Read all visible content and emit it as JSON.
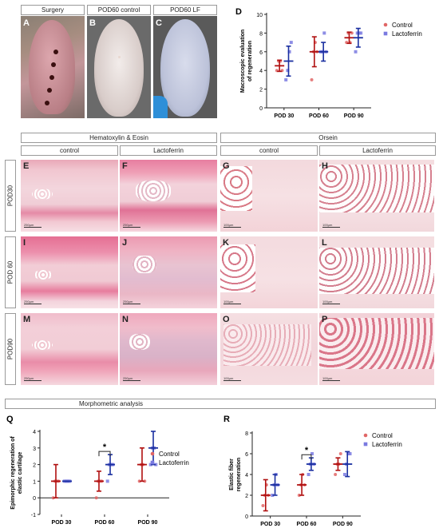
{
  "colors": {
    "control": "#e06666",
    "lactoferrin": "#7a7ae0",
    "control_bar": "#b01010",
    "lactoferrin_bar": "#1a2fa0"
  },
  "top_headers": [
    "Surgery",
    "POD60 control",
    "POD60 LF"
  ],
  "photos": [
    {
      "label": "A"
    },
    {
      "label": "B"
    },
    {
      "label": "C"
    }
  ],
  "he_header": "Hematoxylin & Eosin",
  "orsein_header": "Orsein",
  "sub_headers": [
    "control",
    "Lactoferrin",
    "control",
    "Lactoferrin"
  ],
  "row_labels": [
    "POD30",
    "POD 60",
    "POD90"
  ],
  "panels": [
    {
      "label": "E",
      "scale": "250µm"
    },
    {
      "label": "F",
      "scale": "250µm"
    },
    {
      "label": "G",
      "scale": "100µm"
    },
    {
      "label": "H",
      "scale": "100µm"
    },
    {
      "label": "I",
      "scale": "250µm"
    },
    {
      "label": "J",
      "scale": "250µm"
    },
    {
      "label": "K",
      "scale": "100µm"
    },
    {
      "label": "L",
      "scale": "100µm"
    },
    {
      "label": "M",
      "scale": "250µm"
    },
    {
      "label": "N",
      "scale": "250µm"
    },
    {
      "label": "O",
      "scale": "100µm"
    },
    {
      "label": "P",
      "scale": "100µm"
    }
  ],
  "morph_header": "Morphometric analysis",
  "chart_data": [
    {
      "panel_label": "D",
      "type": "scatter",
      "ylabel": "Macroscopic evaluation of regeneration",
      "categories": [
        "POD 30",
        "POD 60",
        "POD 90"
      ],
      "ylim": [
        0,
        10
      ],
      "yticks": [
        0,
        2,
        4,
        6,
        8,
        10
      ],
      "series": [
        {
          "name": "Control",
          "points": [
            [
              4,
              5,
              5,
              4
            ],
            [
              3,
              6,
              7,
              6
            ],
            [
              7,
              8,
              7,
              8
            ]
          ],
          "mean": [
            4.5,
            6,
            7.5
          ],
          "err": [
            0.6,
            1.6,
            0.6
          ]
        },
        {
          "name": "Lactoferrin",
          "points": [
            [
              3,
              4,
              6,
              7
            ],
            [
              6,
              6,
              8,
              6
            ],
            [
              6,
              8,
              8,
              8
            ]
          ],
          "mean": [
            5,
            6,
            7.5
          ],
          "err": [
            1.6,
            1.0,
            1.0
          ]
        }
      ],
      "significance": []
    },
    {
      "panel_label": "Q",
      "type": "scatter",
      "ylabel": "Epimorphic regeneration of elastic cartilage",
      "categories": [
        "POD 30",
        "POD 60",
        "POD 90"
      ],
      "ylim": [
        -1,
        4
      ],
      "yticks": [
        -1,
        0,
        1,
        2,
        3,
        4
      ],
      "series": [
        {
          "name": "Control",
          "points": [
            [
              0,
              1,
              1,
              1
            ],
            [
              0,
              1,
              1,
              1
            ],
            [
              1,
              2,
              2,
              1
            ]
          ],
          "mean": [
            1,
            1,
            2
          ],
          "err": [
            1.0,
            0.6,
            1.0
          ]
        },
        {
          "name": "Lactoferrin",
          "points": [
            [
              1,
              1,
              1,
              1
            ],
            [
              1,
              2,
              2,
              2
            ],
            [
              2,
              3,
              3,
              2
            ]
          ],
          "mean": [
            1,
            2,
            3
          ],
          "err": [
            0,
            0.6,
            1.0
          ]
        }
      ],
      "significance": [
        {
          "category": 1,
          "label": "*"
        }
      ]
    },
    {
      "panel_label": "R",
      "type": "scatter",
      "ylabel": "Elastic fiber regeneration",
      "categories": [
        "POD 30",
        "POD 60",
        "POD 90"
      ],
      "ylim": [
        0,
        8
      ],
      "yticks": [
        0,
        2,
        4,
        6,
        8
      ],
      "series": [
        {
          "name": "Control",
          "points": [
            [
              1,
              2,
              3,
              2
            ],
            [
              2,
              3,
              4,
              3
            ],
            [
              4,
              5,
              5,
              6
            ]
          ],
          "mean": [
            2,
            3,
            5
          ],
          "err": [
            1.5,
            1.0,
            0.6
          ]
        },
        {
          "name": "Lactoferrin",
          "points": [
            [
              2,
              3,
              4,
              3
            ],
            [
              4,
              5,
              6,
              5
            ],
            [
              4,
              5,
              6,
              6
            ]
          ],
          "mean": [
            3,
            5,
            5
          ],
          "err": [
            1.0,
            0.6,
            1.2
          ]
        }
      ],
      "significance": [
        {
          "category": 1,
          "label": "*"
        }
      ]
    }
  ]
}
